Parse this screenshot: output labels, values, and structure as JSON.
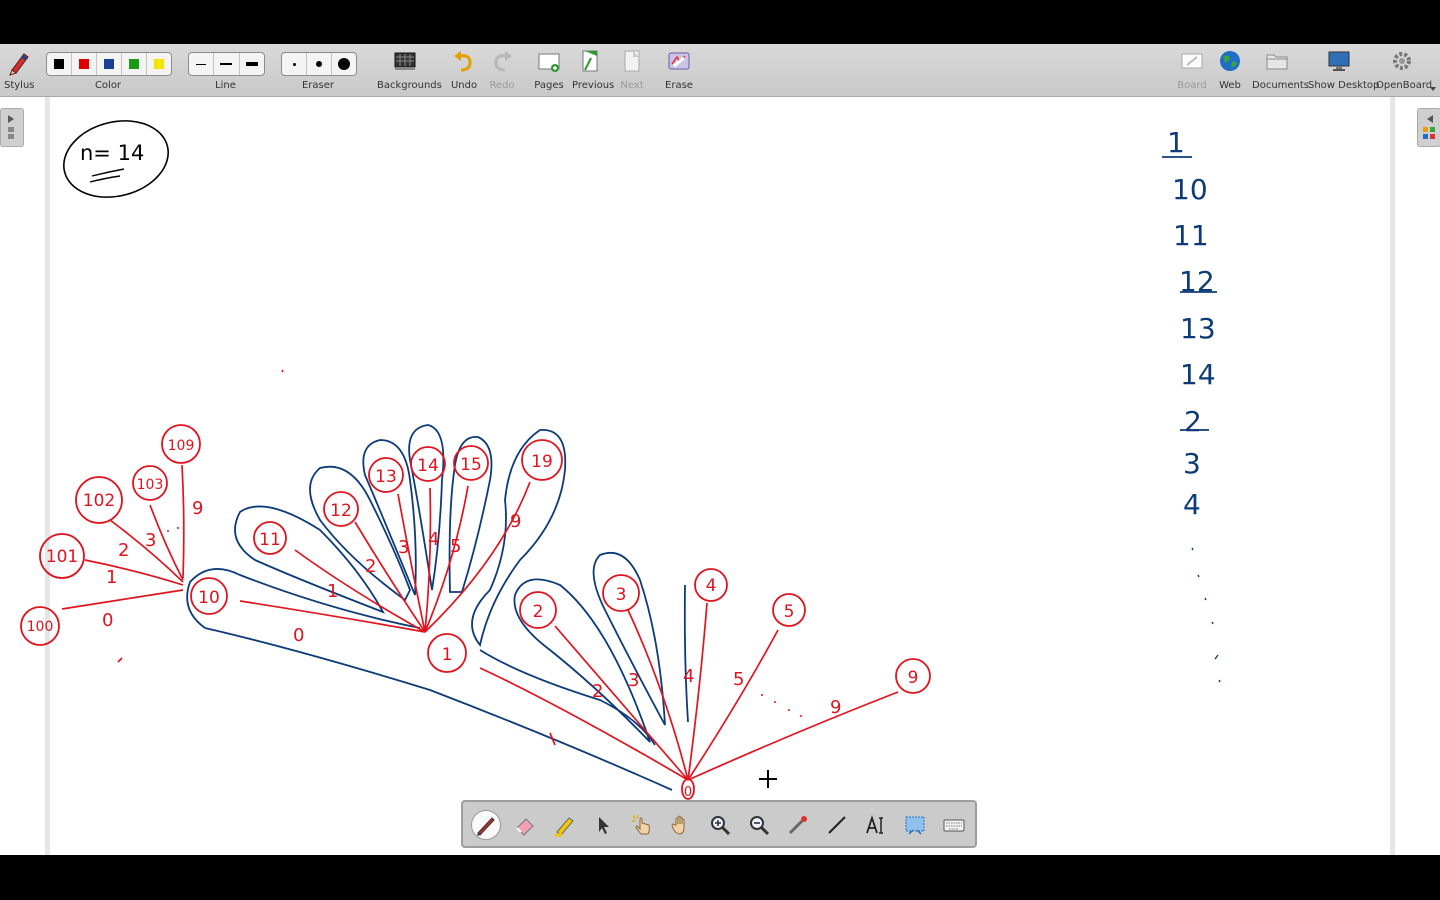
{
  "app": {
    "name": "OpenBoard"
  },
  "toolbar": {
    "stylus": "Stylus",
    "color": "Color",
    "line": "Line",
    "eraser": "Eraser",
    "backgrounds": "Backgrounds",
    "undo": "Undo",
    "redo": "Redo",
    "pages": "Pages",
    "previous": "Previous",
    "next": "Next",
    "erase": "Erase",
    "board": "Board",
    "web": "Web",
    "documents": "Documents",
    "show_desktop": "Show Desktop",
    "openboard": "OpenBoard"
  },
  "colors": [
    "#000000",
    "#e00000",
    "#1a3f96",
    "#1a9a1a",
    "#f2e600"
  ],
  "ink": {
    "red": "#e0141e",
    "blue": "#0d3b78",
    "black": "#000000"
  },
  "board": {
    "n_label": "n= 14",
    "side_list": [
      "1",
      "10",
      "11",
      "12",
      "13",
      "14",
      "2",
      "3",
      "4"
    ],
    "tree": {
      "root": "0",
      "root_children": [
        "1",
        "2",
        "3",
        "4",
        "5",
        "9"
      ],
      "root_edges": [
        "1",
        "2",
        "3",
        "4",
        "5",
        "9"
      ],
      "node1_children": [
        "10",
        "11",
        "12",
        "13",
        "14",
        "15",
        "19"
      ],
      "node1_edges": [
        "0",
        "1",
        "2",
        "3",
        "4",
        "5",
        "9"
      ],
      "node10_children": [
        "100",
        "101",
        "102",
        "103",
        "109"
      ],
      "node10_edges": [
        "0",
        "1",
        "2",
        "3",
        "9"
      ]
    }
  },
  "floating_tools": [
    "pen-icon",
    "eraser-icon",
    "marker-icon",
    "selector-icon",
    "interactor-icon",
    "hand-icon",
    "zoom-in-icon",
    "zoom-out-icon",
    "laser-pointer-icon",
    "line-icon",
    "text-icon",
    "capture-icon",
    "keyboard-icon"
  ]
}
